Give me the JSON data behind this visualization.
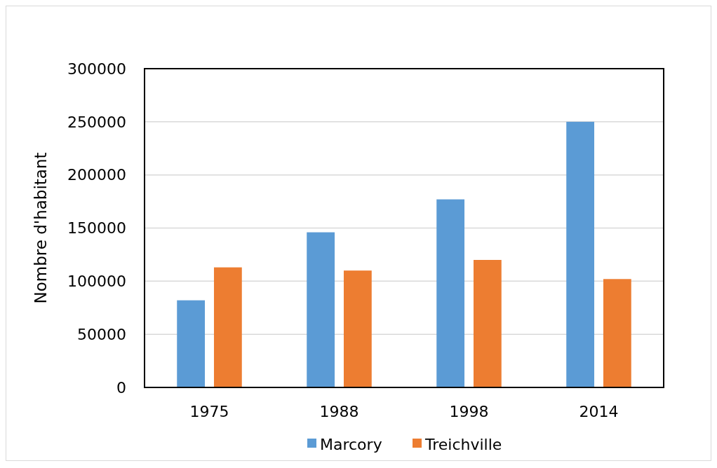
{
  "chart_data": {
    "type": "bar",
    "ylabel": "Nombre d'habitant",
    "categories": [
      "1975",
      "1988",
      "1998",
      "2014"
    ],
    "series": [
      {
        "name": "Marcory",
        "color": "#5b9bd5",
        "values": [
          82000,
          146000,
          177000,
          250000
        ]
      },
      {
        "name": "Treichville",
        "color": "#ed7d31",
        "values": [
          113000,
          110000,
          120000,
          102000
        ]
      }
    ],
    "ylim": [
      0,
      300000
    ],
    "yticks": [
      0,
      50000,
      100000,
      150000,
      200000,
      250000,
      300000
    ],
    "grid": "y",
    "legend": "bottom"
  }
}
